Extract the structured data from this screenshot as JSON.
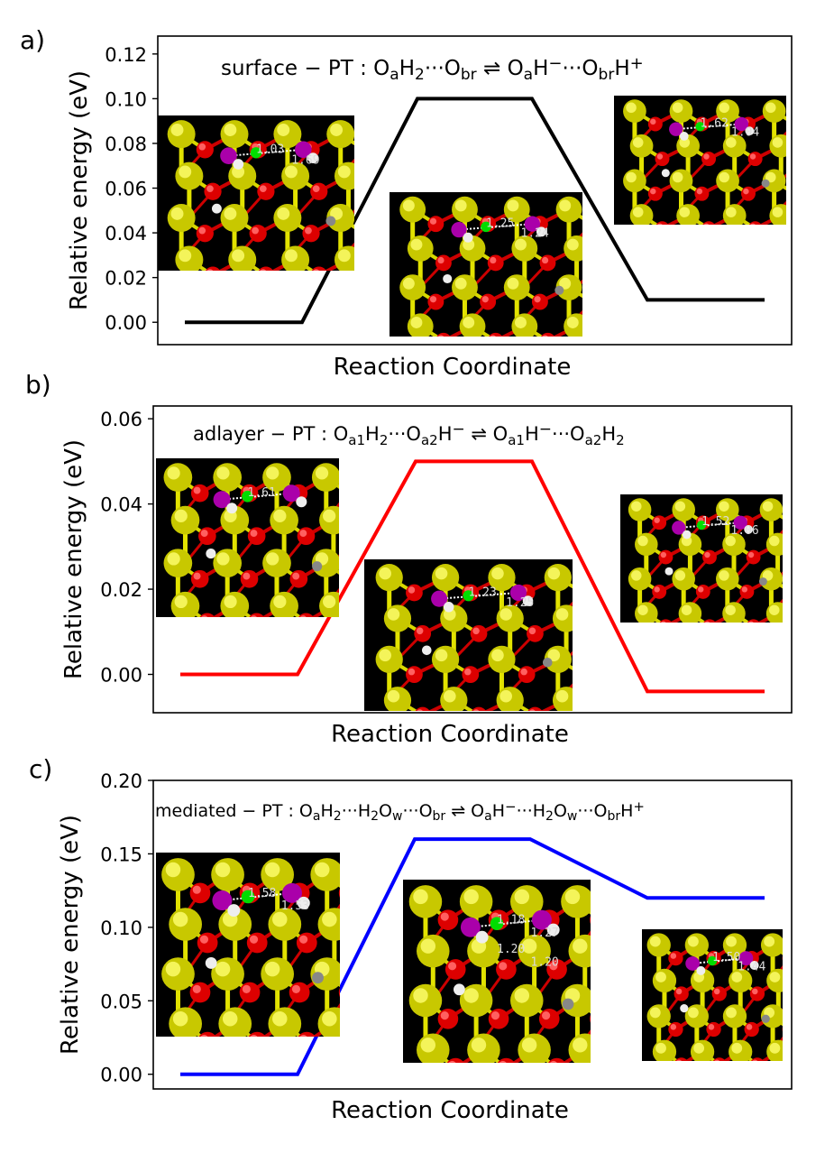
{
  "chart_data": [
    {
      "panel": "a)",
      "type": "line",
      "title_parts": {
        "prefix": "surface − PT : ",
        "lhs": [
          [
            "O",
            "a"
          ],
          [
            "H",
            "2"
          ],
          [
            "···O",
            "br"
          ]
        ],
        "arrow": " ⇌ ",
        "rhs": "OaH⁻···ObrH⁺"
      },
      "title_text": "surface − PT : OaH2···Obr ⇌ OaH⁻···ObrH⁺",
      "xlabel": "Reaction Coordinate",
      "ylabel": "Relative energy (eV)",
      "ylim": [
        -0.01,
        0.128
      ],
      "yticks": [
        "0.00",
        "0.02",
        "0.04",
        "0.06",
        "0.08",
        "0.10",
        "0.12"
      ],
      "x": [
        0,
        1,
        2,
        3,
        4,
        5
      ],
      "series": [
        {
          "color": "#000000",
          "values": [
            0.0,
            0.0,
            0.1,
            0.1,
            0.01,
            0.01
          ]
        }
      ],
      "insets": [
        {
          "labels": [
            "1.03",
            "1.69"
          ]
        },
        {
          "labels": [
            "1.25",
            "1.24"
          ]
        },
        {
          "labels": [
            "1.62",
            "1.04"
          ]
        }
      ]
    },
    {
      "panel": "b)",
      "type": "line",
      "title_text": "adlayer − PT : Oa1H2···Oa2H⁻ ⇌ Oa1H⁻···Oa2H2",
      "xlabel": "Reaction Coordinate",
      "ylabel": "Relative energy (eV)",
      "ylim": [
        -0.009,
        0.063
      ],
      "yticks": [
        "0.00",
        "0.02",
        "0.04",
        "0.06"
      ],
      "x": [
        0,
        1,
        2,
        3,
        4,
        5
      ],
      "series": [
        {
          "color": "#ff0000",
          "values": [
            0.0,
            0.0,
            0.05,
            0.05,
            -0.004,
            -0.004
          ]
        }
      ],
      "insets": [
        {
          "labels": [
            "1.61"
          ]
        },
        {
          "labels": [
            "1.23",
            "1.25"
          ]
        },
        {
          "labels": [
            "1.52",
            "1.06"
          ]
        }
      ]
    },
    {
      "panel": "c)",
      "type": "line",
      "title_text": "mediated − PT : OaH2···H2Ow···Obr ⇌ OaH⁻···H2Ow···ObrH⁺",
      "xlabel": "Reaction Coordinate",
      "ylabel": "Relative energy (eV)",
      "ylim": [
        -0.01,
        0.2
      ],
      "yticks": [
        "0.00",
        "0.05",
        "0.10",
        "0.15",
        "0.20"
      ],
      "x": [
        0,
        1,
        2,
        3,
        4,
        5
      ],
      "series": [
        {
          "color": "#0000ff",
          "values": [
            0.0,
            0.0,
            0.16,
            0.16,
            0.12,
            0.12
          ]
        }
      ],
      "insets": [
        {
          "labels": [
            "1.58",
            "1.53"
          ]
        },
        {
          "labels": [
            "1.18",
            "1.27",
            "1.20",
            "1.20"
          ]
        },
        {
          "labels": [
            "1.50",
            "1.44"
          ]
        }
      ]
    }
  ]
}
